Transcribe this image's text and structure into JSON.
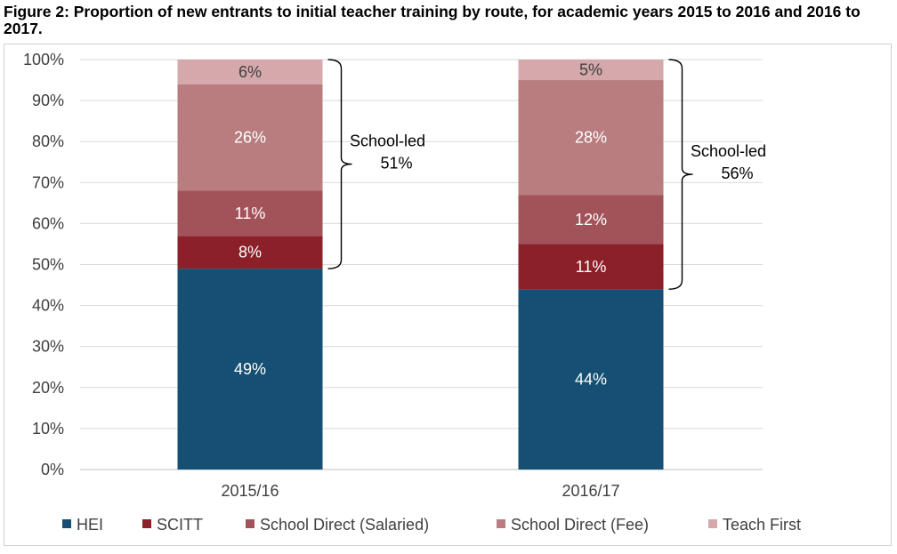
{
  "title": "Figure 2: Proportion of new entrants to initial teacher training by route, for academic years 2015 to 2016 and 2016 to 2017.",
  "chart_data": {
    "type": "bar",
    "stacked": true,
    "percent": true,
    "categories": [
      "2015/16",
      "2016/17"
    ],
    "series": [
      {
        "name": "HEI",
        "values": [
          49,
          44
        ],
        "labels": [
          "49%",
          "44%"
        ],
        "color": "#154f73"
      },
      {
        "name": "SCITT",
        "values": [
          8,
          11
        ],
        "labels": [
          "8%",
          "11%"
        ],
        "color": "#8b2029"
      },
      {
        "name": "School Direct (Salaried)",
        "values": [
          11,
          12
        ],
        "labels": [
          "11%",
          "12%"
        ],
        "color": "#a2535a"
      },
      {
        "name": "School Direct (Fee)",
        "values": [
          26,
          28
        ],
        "labels": [
          "26%",
          "28%"
        ],
        "color": "#b97d80"
      },
      {
        "name": "Teach First",
        "values": [
          6,
          5
        ],
        "labels": [
          "6%",
          "5%"
        ],
        "color": "#d5a8ab"
      }
    ],
    "ylim": [
      0,
      100
    ],
    "yticks": [
      "0%",
      "10%",
      "20%",
      "30%",
      "40%",
      "50%",
      "60%",
      "70%",
      "80%",
      "90%",
      "100%"
    ],
    "grid": true,
    "legend_position": "bottom",
    "annotations": [
      {
        "category": "2015/16",
        "line1": "School-led",
        "line2": "51%",
        "from": 49,
        "to": 100
      },
      {
        "category": "2016/17",
        "line1": "School-led",
        "line2": "56%",
        "from": 44,
        "to": 100
      }
    ]
  }
}
